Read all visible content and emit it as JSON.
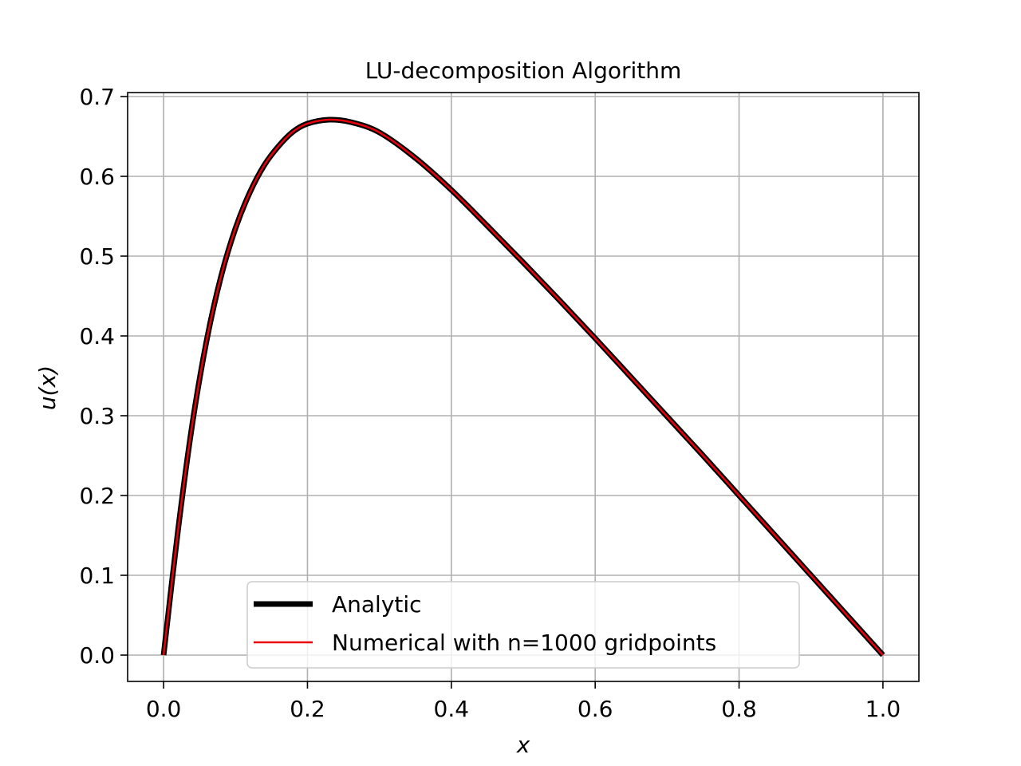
{
  "chart_data": {
    "type": "line",
    "title": "LU-decomposition Algorithm",
    "xlabel": "x",
    "ylabel": "u(x)",
    "xlim": [
      -0.05,
      1.05
    ],
    "ylim": [
      -0.033,
      0.705
    ],
    "xticks": [
      0.0,
      0.2,
      0.4,
      0.6,
      0.8,
      1.0
    ],
    "xtick_labels": [
      "0.0",
      "0.2",
      "0.4",
      "0.6",
      "0.8",
      "1.0"
    ],
    "yticks": [
      0.0,
      0.1,
      0.2,
      0.3,
      0.4,
      0.5,
      0.6,
      0.7
    ],
    "ytick_labels": [
      "0.0",
      "0.1",
      "0.2",
      "0.3",
      "0.4",
      "0.5",
      "0.6",
      "0.7"
    ],
    "grid": true,
    "legend_position": "lower-center",
    "x": [
      0.0,
      0.02,
      0.04,
      0.06,
      0.08,
      0.1,
      0.12,
      0.14,
      0.16,
      0.18,
      0.2,
      0.23,
      0.26,
      0.3,
      0.35,
      0.4,
      0.45,
      0.5,
      0.55,
      0.6,
      0.65,
      0.7,
      0.75,
      0.8,
      0.85,
      0.9,
      0.95,
      1.0
    ],
    "series": [
      {
        "name": "Analytic",
        "color": "#000000",
        "y": [
          0.0,
          0.156,
          0.29,
          0.395,
          0.475,
          0.535,
          0.58,
          0.614,
          0.638,
          0.656,
          0.666,
          0.671,
          0.668,
          0.655,
          0.623,
          0.583,
          0.538,
          0.492,
          0.445,
          0.397,
          0.348,
          0.299,
          0.25,
          0.2,
          0.15,
          0.1,
          0.05,
          0.0
        ]
      },
      {
        "name": "Numerical with n=1000 gridpoints",
        "color": "#e8000b",
        "y": [
          0.0,
          0.156,
          0.29,
          0.395,
          0.475,
          0.535,
          0.58,
          0.614,
          0.638,
          0.656,
          0.666,
          0.671,
          0.668,
          0.655,
          0.623,
          0.583,
          0.538,
          0.492,
          0.445,
          0.397,
          0.348,
          0.299,
          0.25,
          0.2,
          0.15,
          0.1,
          0.05,
          0.0
        ]
      }
    ]
  }
}
